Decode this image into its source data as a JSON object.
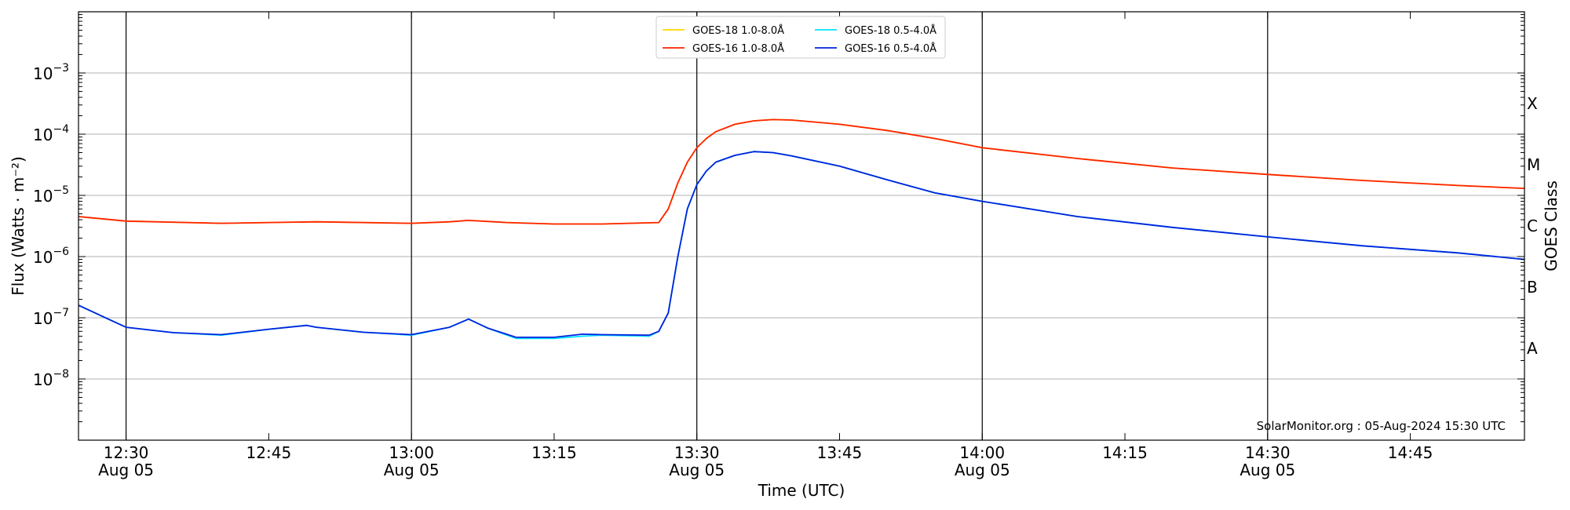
{
  "chart_data": {
    "type": "line",
    "y_scale": "log",
    "ylim": [
      1e-09,
      0.01
    ],
    "xlim": [
      "12:25",
      "14:57"
    ],
    "xlabel": "Time (UTC)",
    "ylabel": "Flux (Watts · m⁻²)",
    "ylabel_right": "GOES Class",
    "grid": "horizontal at each decade",
    "legend_position": "top-center",
    "watermark": "SolarMonitor.org : 05-Aug-2024 15:30 UTC",
    "x_ticks": [
      {
        "time": "12:30",
        "date": "Aug 05"
      },
      {
        "time": "12:45",
        "date": ""
      },
      {
        "time": "13:00",
        "date": "Aug 05"
      },
      {
        "time": "13:15",
        "date": ""
      },
      {
        "time": "13:30",
        "date": "Aug 05"
      },
      {
        "time": "13:45",
        "date": ""
      },
      {
        "time": "14:00",
        "date": "Aug 05"
      },
      {
        "time": "14:15",
        "date": ""
      },
      {
        "time": "14:30",
        "date": "Aug 05"
      },
      {
        "time": "14:45",
        "date": ""
      }
    ],
    "y_ticks": [
      {
        "value": 0.001,
        "base": "10",
        "exp": "−3"
      },
      {
        "value": 0.0001,
        "base": "10",
        "exp": "−4"
      },
      {
        "value": 1e-05,
        "base": "10",
        "exp": "−5"
      },
      {
        "value": 1e-06,
        "base": "10",
        "exp": "−6"
      },
      {
        "value": 1e-07,
        "base": "10",
        "exp": "−7"
      },
      {
        "value": 1e-08,
        "base": "10",
        "exp": "−8"
      }
    ],
    "goes_classes": [
      {
        "label": "X",
        "low": 0.0001,
        "high": 0.001
      },
      {
        "label": "M",
        "low": 1e-05,
        "high": 0.0001
      },
      {
        "label": "C",
        "low": 1e-06,
        "high": 1e-05
      },
      {
        "label": "B",
        "low": 1e-07,
        "high": 1e-06
      },
      {
        "label": "A",
        "low": 1e-08,
        "high": 1e-07
      }
    ],
    "day_markers": [
      "12:30",
      "13:00",
      "13:30",
      "14:00",
      "14:30"
    ],
    "series": [
      {
        "name": "GOES-18 1.0-8.0Å",
        "color": "#ffd700",
        "x": [
          "12:25",
          "12:30",
          "12:40",
          "12:50",
          "13:00",
          "13:04",
          "13:06",
          "13:10",
          "13:15",
          "13:20",
          "13:26",
          "13:27",
          "13:28",
          "13:29",
          "13:30",
          "13:31",
          "13:32",
          "13:34",
          "13:36",
          "13:38",
          "13:40",
          "13:45",
          "13:50",
          "13:55",
          "14:00",
          "14:10",
          "14:20",
          "14:30",
          "14:40",
          "14:50",
          "14:57"
        ],
        "values": [
          4.5e-06,
          3.8e-06,
          3.5e-06,
          3.7e-06,
          3.5e-06,
          3.7e-06,
          3.9e-06,
          3.6e-06,
          3.4e-06,
          3.4e-06,
          3.6e-06,
          6e-06,
          1.6e-05,
          3.5e-05,
          6e-05,
          8.5e-05,
          0.00011,
          0.000145,
          0.000165,
          0.000173,
          0.00017,
          0.000145,
          0.000115,
          8.5e-05,
          6e-05,
          4e-05,
          2.8e-05,
          2.2e-05,
          1.75e-05,
          1.45e-05,
          1.3e-05
        ]
      },
      {
        "name": "GOES-18 0.5-4.0Å",
        "color": "#00e5ff",
        "x": [
          "12:25",
          "12:30",
          "12:35",
          "12:40",
          "12:45",
          "12:49",
          "12:50",
          "12:55",
          "13:00",
          "13:04",
          "13:06",
          "13:08",
          "13:11",
          "13:15",
          "13:18",
          "13:20",
          "13:25",
          "13:26",
          "13:27",
          "13:28",
          "13:29",
          "13:30",
          "13:31",
          "13:32",
          "13:34",
          "13:36",
          "13:38",
          "13:40",
          "13:45",
          "13:50",
          "13:55",
          "14:00",
          "14:10",
          "14:20",
          "14:30",
          "14:40",
          "14:50",
          "14:57"
        ],
        "values": [
          1.6e-07,
          7e-08,
          5.7e-08,
          5.2e-08,
          6.5e-08,
          7.5e-08,
          7e-08,
          5.8e-08,
          5.2e-08,
          7e-08,
          9.5e-08,
          6.8e-08,
          4.6e-08,
          4.6e-08,
          5e-08,
          5.2e-08,
          5e-08,
          6e-08,
          1.2e-07,
          1e-06,
          6e-06,
          1.5e-05,
          2.5e-05,
          3.5e-05,
          4.5e-05,
          5.2e-05,
          5e-05,
          4.4e-05,
          3e-05,
          1.8e-05,
          1.1e-05,
          8e-06,
          4.5e-06,
          3e-06,
          2.1e-06,
          1.5e-06,
          1.15e-06,
          9e-07
        ]
      },
      {
        "name": "GOES-16 1.0-8.0Å",
        "color": "#ff2200",
        "x": [
          "12:25",
          "12:30",
          "12:40",
          "12:50",
          "13:00",
          "13:04",
          "13:06",
          "13:10",
          "13:15",
          "13:20",
          "13:26",
          "13:27",
          "13:28",
          "13:29",
          "13:30",
          "13:31",
          "13:32",
          "13:34",
          "13:36",
          "13:38",
          "13:40",
          "13:45",
          "13:50",
          "13:55",
          "14:00",
          "14:10",
          "14:20",
          "14:30",
          "14:40",
          "14:50",
          "14:57"
        ],
        "values": [
          4.5e-06,
          3.8e-06,
          3.5e-06,
          3.7e-06,
          3.5e-06,
          3.7e-06,
          3.9e-06,
          3.6e-06,
          3.4e-06,
          3.4e-06,
          3.6e-06,
          6e-06,
          1.6e-05,
          3.5e-05,
          6e-05,
          8.5e-05,
          0.00011,
          0.000145,
          0.000165,
          0.000173,
          0.00017,
          0.000145,
          0.000115,
          8.5e-05,
          6e-05,
          4e-05,
          2.8e-05,
          2.2e-05,
          1.75e-05,
          1.45e-05,
          1.3e-05
        ]
      },
      {
        "name": "GOES-16 0.5-4.0Å",
        "color": "#0022dd",
        "x": [
          "12:25",
          "12:30",
          "12:35",
          "12:40",
          "12:45",
          "12:49",
          "12:50",
          "12:55",
          "13:00",
          "13:04",
          "13:06",
          "13:08",
          "13:11",
          "13:15",
          "13:18",
          "13:20",
          "13:25",
          "13:26",
          "13:27",
          "13:28",
          "13:29",
          "13:30",
          "13:31",
          "13:32",
          "13:34",
          "13:36",
          "13:38",
          "13:40",
          "13:45",
          "13:50",
          "13:55",
          "14:00",
          "14:10",
          "14:20",
          "14:30",
          "14:40",
          "14:50",
          "14:57"
        ],
        "values": [
          1.6e-07,
          7e-08,
          5.7e-08,
          5.3e-08,
          6.5e-08,
          7.5e-08,
          7e-08,
          5.8e-08,
          5.3e-08,
          7e-08,
          9.5e-08,
          6.8e-08,
          4.8e-08,
          4.8e-08,
          5.4e-08,
          5.3e-08,
          5.2e-08,
          6e-08,
          1.2e-07,
          1e-06,
          6e-06,
          1.5e-05,
          2.5e-05,
          3.5e-05,
          4.5e-05,
          5.2e-05,
          5e-05,
          4.4e-05,
          3e-05,
          1.8e-05,
          1.1e-05,
          8e-06,
          4.5e-06,
          3e-06,
          2.1e-06,
          1.5e-06,
          1.15e-06,
          9e-07
        ]
      }
    ]
  }
}
